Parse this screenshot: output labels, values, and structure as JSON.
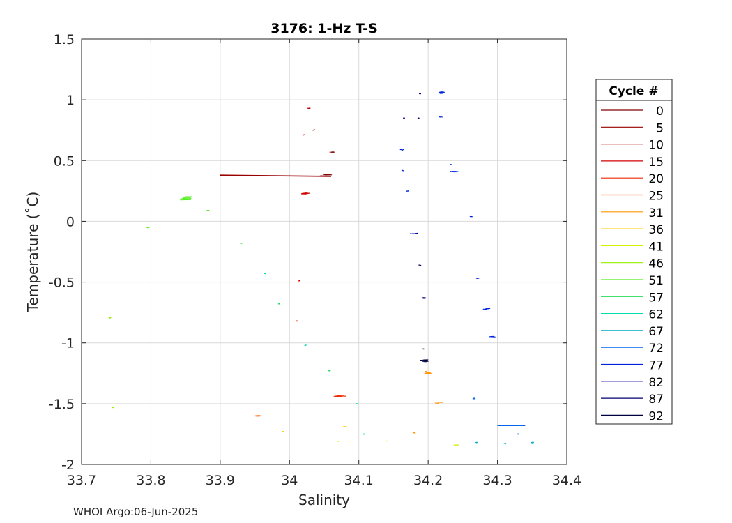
{
  "footer": "WHOI Argo:06-Jun-2025",
  "chart_data": {
    "type": "scatter",
    "title": "3176: 1-Hz T-S",
    "xlabel": "Salinity",
    "ylabel": "Temperature (˚C)",
    "xlim": [
      33.7,
      34.4
    ],
    "ylim": [
      -2,
      1.5
    ],
    "xticks": [
      33.7,
      33.8,
      33.9,
      34.0,
      34.1,
      34.2,
      34.3,
      34.4
    ],
    "xtick_labels": [
      "33.7",
      "33.8",
      "33.9",
      "34",
      "34.1",
      "34.2",
      "34.3",
      "34.4"
    ],
    "yticks": [
      -2,
      -1.5,
      -1,
      -0.5,
      0,
      0.5,
      1,
      1.5
    ],
    "ytick_labels": [
      "-2",
      "-1.5",
      "-1",
      "-0.5",
      "0",
      "0.5",
      "1",
      "1.5"
    ],
    "grid": true,
    "legend": {
      "title": "Cycle #",
      "placement": "outside-right"
    },
    "series": [
      {
        "name": "0",
        "color": "#7f0000",
        "clusters": [
          {
            "x": 34.05,
            "y": 0.38,
            "sx": 0.012,
            "sy": 0.004
          },
          {
            "x": 34.06,
            "y": 0.57,
            "sx": 0.005,
            "sy": 0.006
          }
        ]
      },
      {
        "name": "5",
        "color": "#9a0000",
        "lines": [
          [
            33.9,
            0.38,
            34.06,
            0.37
          ]
        ],
        "clusters": [
          {
            "x": 34.035,
            "y": 0.75,
            "sx": 0.002,
            "sy": 0.004
          }
        ]
      },
      {
        "name": "10",
        "color": "#b50000",
        "clusters": [
          {
            "x": 34.028,
            "y": 0.93,
            "sx": 0.004,
            "sy": 0.006
          },
          {
            "x": 34.02,
            "y": 0.71,
            "sx": 0.002,
            "sy": 0.004
          }
        ]
      },
      {
        "name": "15",
        "color": "#d00000",
        "clusters": [
          {
            "x": 34.023,
            "y": 0.23,
            "sx": 0.009,
            "sy": 0.013
          },
          {
            "x": 34.014,
            "y": -0.49,
            "sx": 0.002,
            "sy": 0.003
          }
        ]
      },
      {
        "name": "20",
        "color": "#ee2a00",
        "clusters": [
          {
            "x": 34.07,
            "y": -1.44,
            "sx": 0.012,
            "sy": 0.014
          },
          {
            "x": 34.01,
            "y": -0.82,
            "sx": 0.002,
            "sy": 0.003
          }
        ]
      },
      {
        "name": "25",
        "color": "#ff5a00",
        "clusters": [
          {
            "x": 33.955,
            "y": -1.6,
            "sx": 0.009,
            "sy": 0.012
          }
        ]
      },
      {
        "name": "31",
        "color": "#ff9500",
        "clusters": [
          {
            "x": 34.2,
            "y": -1.25,
            "sx": 0.008,
            "sy": 0.018
          },
          {
            "x": 34.217,
            "y": -1.49,
            "sx": 0.006,
            "sy": 0.007
          },
          {
            "x": 34.18,
            "y": -1.74,
            "sx": 0.003,
            "sy": 0.003
          }
        ]
      },
      {
        "name": "36",
        "color": "#ffc800",
        "clusters": [
          {
            "x": 34.08,
            "y": -1.69,
            "sx": 0.004,
            "sy": 0.004
          },
          {
            "x": 33.99,
            "y": -1.73,
            "sx": 0.001,
            "sy": 0.002
          }
        ]
      },
      {
        "name": "41",
        "color": "#d7f000",
        "clusters": [
          {
            "x": 34.14,
            "y": -1.81,
            "sx": 0.003,
            "sy": 0.003
          },
          {
            "x": 34.24,
            "y": -1.84,
            "sx": 0.006,
            "sy": 0.002
          },
          {
            "x": 34.07,
            "y": -1.81,
            "sx": 0.001,
            "sy": 0.002
          }
        ]
      },
      {
        "name": "46",
        "color": "#94f000",
        "clusters": [
          {
            "x": 33.742,
            "y": -0.8,
            "sx": 0.003,
            "sy": 0.025
          },
          {
            "x": 33.745,
            "y": -1.53,
            "sx": 0.002,
            "sy": 0.003
          }
        ]
      },
      {
        "name": "51",
        "color": "#55ee22",
        "clusters": [
          {
            "x": 33.852,
            "y": 0.19,
            "sx": 0.012,
            "sy": 0.022
          },
          {
            "x": 33.882,
            "y": 0.09,
            "sx": 0.004,
            "sy": 0.005
          },
          {
            "x": 33.795,
            "y": -0.05,
            "sx": 0.003,
            "sy": 0.004
          }
        ]
      },
      {
        "name": "57",
        "color": "#22dd55",
        "clusters": [
          {
            "x": 33.93,
            "y": -0.18,
            "sx": 0.002,
            "sy": 0.003
          },
          {
            "x": 33.985,
            "y": -0.68,
            "sx": 0.001,
            "sy": 0.003
          },
          {
            "x": 34.058,
            "y": -1.23,
            "sx": 0.002,
            "sy": 0.004
          }
        ]
      },
      {
        "name": "62",
        "color": "#00ddaa",
        "clusters": [
          {
            "x": 34.098,
            "y": -1.5,
            "sx": 0.002,
            "sy": 0.003
          },
          {
            "x": 34.108,
            "y": -1.75,
            "sx": 0.003,
            "sy": 0.003
          },
          {
            "x": 33.965,
            "y": -0.43,
            "sx": 0.001,
            "sy": 0.002
          },
          {
            "x": 34.023,
            "y": -1.02,
            "sx": 0.001,
            "sy": 0.002
          }
        ]
      },
      {
        "name": "67",
        "color": "#00aacc",
        "clusters": [
          {
            "x": 34.35,
            "y": -1.82,
            "sx": 0.004,
            "sy": 0.007
          },
          {
            "x": 34.31,
            "y": -1.83,
            "sx": 0.002,
            "sy": 0.002
          },
          {
            "x": 34.27,
            "y": -1.82,
            "sx": 0.002,
            "sy": 0.002
          }
        ]
      },
      {
        "name": "72",
        "color": "#0066ee",
        "lines": [
          [
            34.3,
            -1.68,
            34.34,
            -1.68
          ]
        ],
        "clusters": [
          {
            "x": 34.33,
            "y": -1.75,
            "sx": 0.002,
            "sy": 0.003
          },
          {
            "x": 34.265,
            "y": -1.46,
            "sx": 0.004,
            "sy": 0.004
          }
        ]
      },
      {
        "name": "77",
        "color": "#0022dd",
        "clusters": [
          {
            "x": 34.22,
            "y": 1.06,
            "sx": 0.008,
            "sy": 0.018
          },
          {
            "x": 34.285,
            "y": -0.72,
            "sx": 0.007,
            "sy": 0.006
          },
          {
            "x": 34.293,
            "y": -0.95,
            "sx": 0.006,
            "sy": 0.006
          },
          {
            "x": 34.24,
            "y": 0.41,
            "sx": 0.008,
            "sy": 0.008
          },
          {
            "x": 34.162,
            "y": 0.59,
            "sx": 0.004,
            "sy": 0.004
          },
          {
            "x": 34.233,
            "y": 0.47,
            "sx": 0.002,
            "sy": 0.004
          },
          {
            "x": 34.262,
            "y": 0.04,
            "sx": 0.003,
            "sy": 0.004
          },
          {
            "x": 34.272,
            "y": -0.47,
            "sx": 0.002,
            "sy": 0.003
          },
          {
            "x": 34.218,
            "y": 0.86,
            "sx": 0.002,
            "sy": 0.003
          },
          {
            "x": 34.17,
            "y": 0.25,
            "sx": 0.002,
            "sy": 0.004
          },
          {
            "x": 34.163,
            "y": 0.42,
            "sx": 0.001,
            "sy": 0.003
          }
        ]
      },
      {
        "name": "82",
        "color": "#0000aa",
        "clusters": [
          {
            "x": 34.18,
            "y": -0.1,
            "sx": 0.006,
            "sy": 0.004
          },
          {
            "x": 34.188,
            "y": 1.05,
            "sx": 0.001,
            "sy": 0.003
          },
          {
            "x": 34.165,
            "y": 0.85,
            "sx": 0.001,
            "sy": 0.002
          }
        ]
      },
      {
        "name": "87",
        "color": "#00006e",
        "clusters": [
          {
            "x": 34.195,
            "y": -0.63,
            "sx": 0.004,
            "sy": 0.01
          },
          {
            "x": 34.186,
            "y": 0.85,
            "sx": 0.001,
            "sy": 0.002
          },
          {
            "x": 34.188,
            "y": -0.36,
            "sx": 0.001,
            "sy": 0.003
          }
        ]
      },
      {
        "name": "92",
        "color": "#000040",
        "clusters": [
          {
            "x": 34.196,
            "y": -1.15,
            "sx": 0.009,
            "sy": 0.017
          },
          {
            "x": 34.193,
            "y": -1.05,
            "sx": 0.001,
            "sy": 0.003
          }
        ]
      }
    ]
  }
}
